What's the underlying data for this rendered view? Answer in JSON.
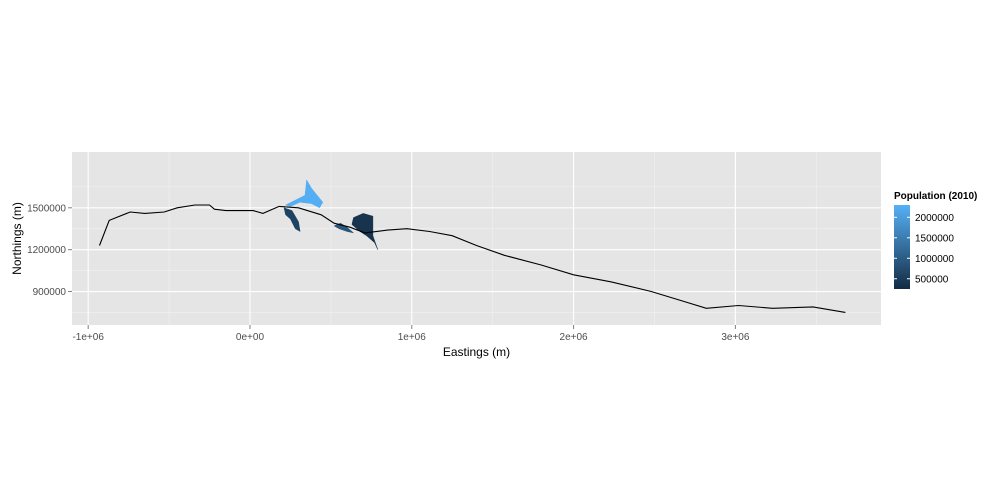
{
  "chart_data": {
    "type": "line",
    "xlabel": "Eastings (m)",
    "ylabel": "Northings (m)",
    "xlim": [
      -1100000,
      3900000
    ],
    "ylim": [
      660000,
      1900000
    ],
    "grid": true,
    "xticks": [
      {
        "value": -1000000,
        "label": "-1e+06"
      },
      {
        "value": 0,
        "label": "0e+00"
      },
      {
        "value": 1000000,
        "label": "1e+06"
      },
      {
        "value": 2000000,
        "label": "2e+06"
      },
      {
        "value": 3000000,
        "label": "3e+06"
      }
    ],
    "yticks": [
      {
        "value": 900000,
        "label": "900000"
      },
      {
        "value": 1200000,
        "label": "1200000"
      },
      {
        "value": 1500000,
        "label": "1500000"
      }
    ],
    "line": {
      "color": "#000000",
      "x": [
        -930000,
        -870000,
        -740000,
        -650000,
        -530000,
        -450000,
        -340000,
        -250000,
        -220000,
        -150000,
        20000,
        80000,
        180000,
        300000,
        440000,
        520000,
        620000,
        710000,
        850000,
        970000,
        1110000,
        1250000,
        1400000,
        1570000,
        1800000,
        2000000,
        2230000,
        2480000,
        2650000,
        2820000,
        3020000,
        3230000,
        3480000,
        3680000
      ],
      "y": [
        1230000,
        1410000,
        1470000,
        1460000,
        1470000,
        1500000,
        1520000,
        1520000,
        1490000,
        1480000,
        1480000,
        1460000,
        1510000,
        1500000,
        1450000,
        1390000,
        1360000,
        1320000,
        1340000,
        1350000,
        1330000,
        1300000,
        1230000,
        1160000,
        1090000,
        1020000,
        970000,
        900000,
        840000,
        780000,
        800000,
        780000,
        790000,
        750000
      ]
    },
    "legend": {
      "title": "Population (2010)",
      "position": "right",
      "type": "colorbar",
      "low_color": "#132b43",
      "high_color": "#56b1f7",
      "min": 250000,
      "max": 2300000,
      "breaks": [
        {
          "value": 500000,
          "label": "500000"
        },
        {
          "value": 1000000,
          "label": "1000000"
        },
        {
          "value": 1500000,
          "label": "1500000"
        },
        {
          "value": 2000000,
          "label": "2000000"
        }
      ]
    },
    "regions": [
      {
        "population": 2250000,
        "points": [
          [
            220000,
            1520000
          ],
          [
            290000,
            1560000
          ],
          [
            340000,
            1590000
          ],
          [
            350000,
            1700000
          ],
          [
            380000,
            1640000
          ],
          [
            450000,
            1540000
          ],
          [
            430000,
            1500000
          ],
          [
            380000,
            1530000
          ],
          [
            310000,
            1540000
          ],
          [
            250000,
            1510000
          ]
        ]
      },
      {
        "population": 600000,
        "points": [
          [
            210000,
            1500000
          ],
          [
            260000,
            1480000
          ],
          [
            300000,
            1400000
          ],
          [
            310000,
            1330000
          ],
          [
            280000,
            1350000
          ],
          [
            250000,
            1420000
          ],
          [
            220000,
            1450000
          ]
        ]
      },
      {
        "population": 900000,
        "points": [
          [
            520000,
            1370000
          ],
          [
            560000,
            1390000
          ],
          [
            600000,
            1360000
          ],
          [
            640000,
            1320000
          ],
          [
            600000,
            1330000
          ],
          [
            550000,
            1350000
          ]
        ]
      },
      {
        "population": 380000,
        "points": [
          [
            640000,
            1430000
          ],
          [
            700000,
            1460000
          ],
          [
            760000,
            1440000
          ],
          [
            760000,
            1300000
          ],
          [
            790000,
            1200000
          ],
          [
            770000,
            1250000
          ],
          [
            720000,
            1300000
          ],
          [
            680000,
            1330000
          ],
          [
            630000,
            1380000
          ]
        ]
      }
    ]
  }
}
